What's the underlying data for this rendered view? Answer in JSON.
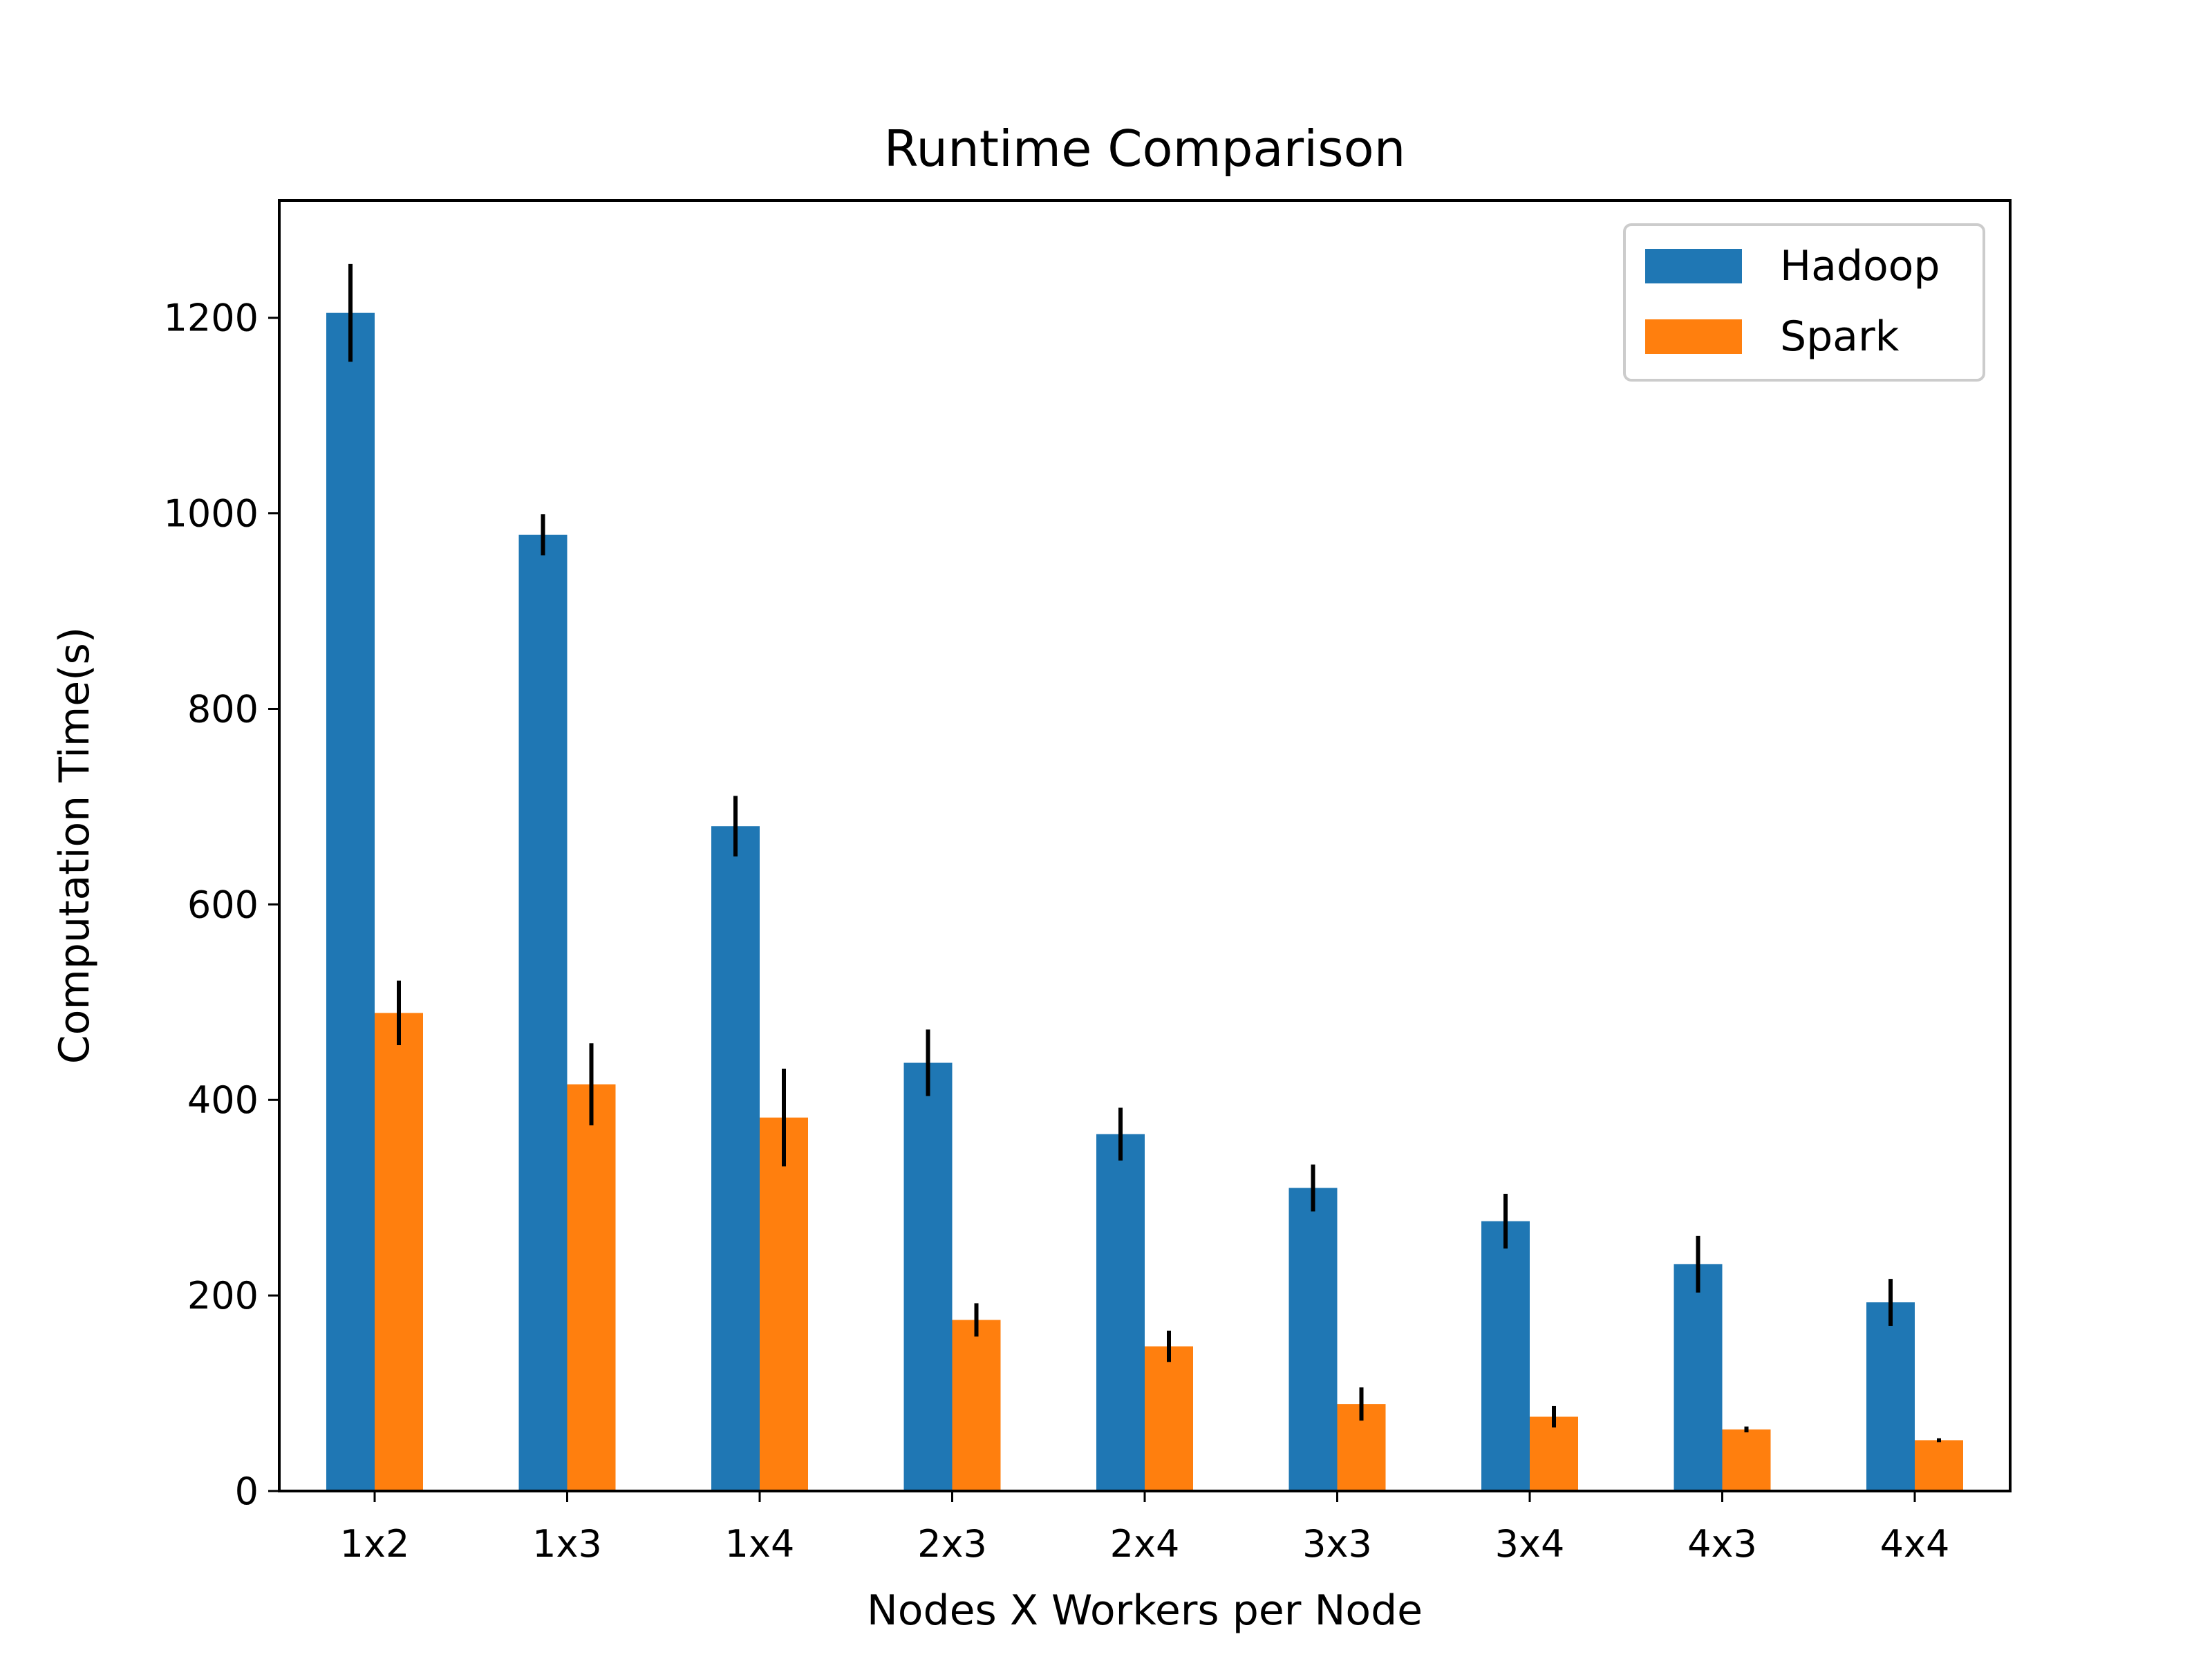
{
  "chart_data": {
    "type": "bar",
    "title": "Runtime Comparison",
    "xlabel": "Nodes X Workers per Node",
    "ylabel": "Computation Time(s)",
    "categories": [
      "1x2",
      "1x3",
      "1x4",
      "2x3",
      "2x4",
      "3x3",
      "3x4",
      "4x3",
      "4x4"
    ],
    "series": [
      {
        "name": "Hadoop",
        "color": "#1f77b4",
        "values": [
          1205,
          978,
          680,
          438,
          365,
          310,
          276,
          232,
          193
        ],
        "errors": [
          50,
          21,
          31,
          34,
          27,
          24,
          28,
          29,
          24
        ]
      },
      {
        "name": "Spark",
        "color": "#ff7f0e",
        "values": [
          489,
          416,
          382,
          175,
          148,
          89,
          76,
          63,
          52
        ],
        "errors": [
          33,
          42,
          50,
          17,
          16,
          17,
          11,
          3,
          2
        ]
      }
    ],
    "yticks": [
      "0",
      "200",
      "400",
      "600",
      "800",
      "1000",
      "1200"
    ],
    "ylim": [
      0,
      1320
    ],
    "grid": false,
    "legend_position": "top-right"
  }
}
